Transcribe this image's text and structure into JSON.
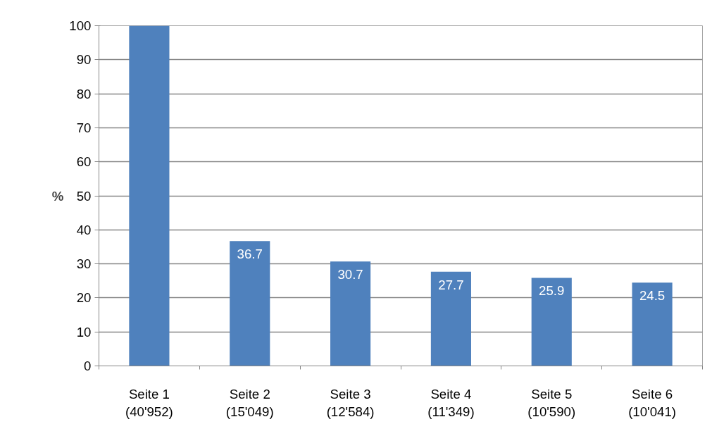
{
  "chart_data": {
    "type": "bar",
    "ylabel": "%",
    "categories": [
      "Seite 1\n(40'952)",
      "Seite 2\n(15'049)",
      "Seite 3\n(12'584)",
      "Seite 4\n(11'349)",
      "Seite 5\n(10'590)",
      "Seite 6\n(10'041)"
    ],
    "values": [
      100,
      36.7,
      30.7,
      27.7,
      25.9,
      24.5
    ],
    "value_labels": [
      null,
      "36.7",
      "30.7",
      "27.7",
      "25.9",
      "24.5"
    ],
    "color": "#4f81bd",
    "ylim": [
      0,
      100
    ],
    "yticks": [
      0,
      10,
      20,
      30,
      40,
      50,
      60,
      70,
      80,
      90,
      100
    ],
    "grid": "y"
  }
}
